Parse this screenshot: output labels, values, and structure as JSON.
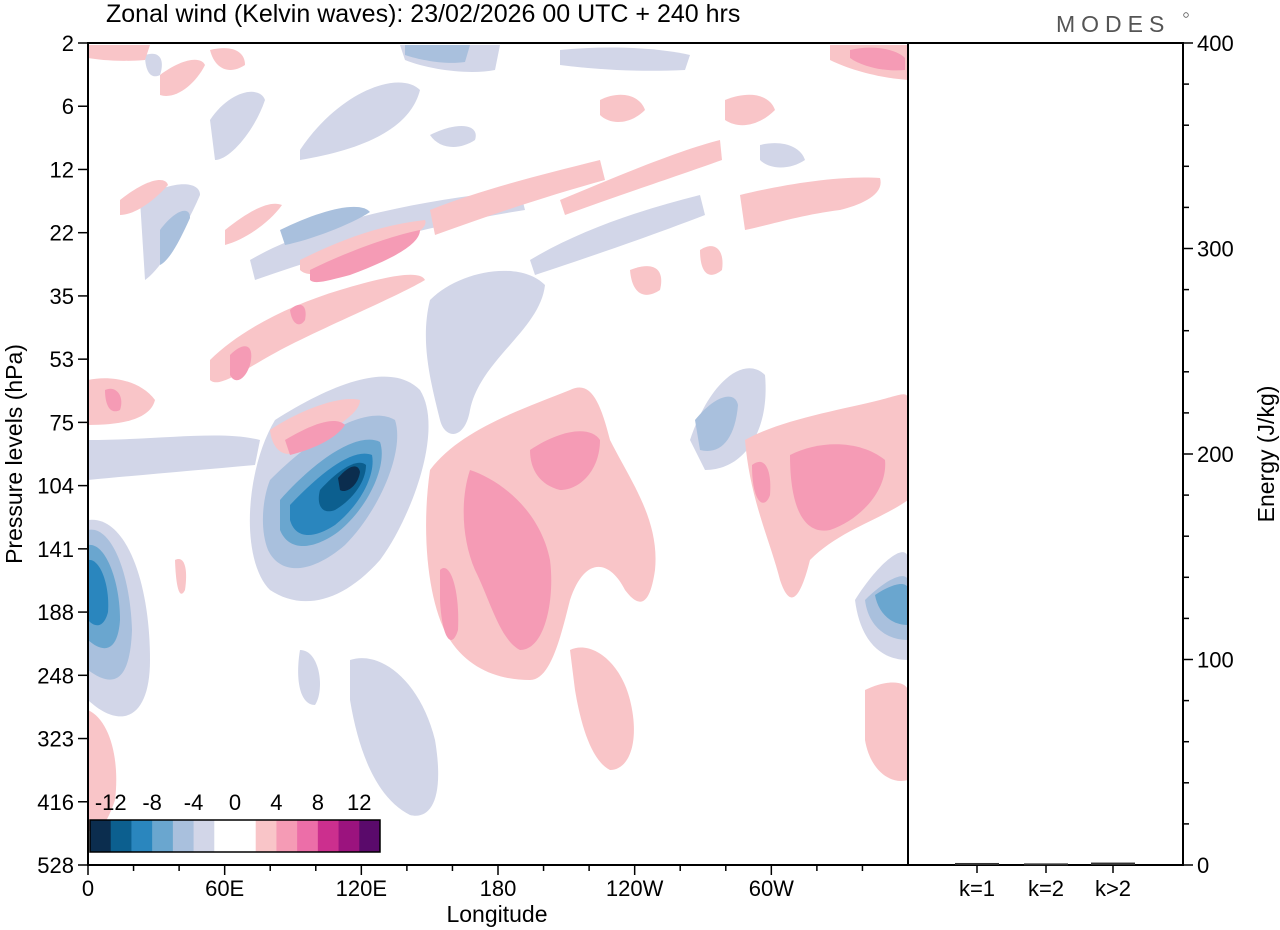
{
  "chart_data": {
    "type": "heatmap",
    "title": "Zonal wind (Kelvin waves):  23/02/2026  00 UTC  + 240 hrs",
    "xlabel": "Longitude",
    "ylabel": "Pressure levels (hPa)",
    "x_ticks": [
      "0",
      "60E",
      "120E",
      "180",
      "120W",
      "60W"
    ],
    "y_ticks": [
      "2",
      "6",
      "12",
      "22",
      "35",
      "53",
      "75",
      "104",
      "141",
      "188",
      "248",
      "323",
      "416",
      "528"
    ],
    "colorbar": {
      "labels": [
        "-12",
        "-8",
        "-4",
        "0",
        "4",
        "8",
        "12"
      ],
      "colors": [
        "#0b2d4e",
        "#0c5f8f",
        "#2a86be",
        "#6aa6cf",
        "#a9c0dd",
        "#d2d6e8",
        "#ffffff",
        "#ffffff",
        "#f9c5c8",
        "#f59bb5",
        "#ec6ea8",
        "#cc2f8e",
        "#9b137e",
        "#5a0a6b"
      ]
    },
    "features": [
      {
        "name": "negative anomaly core",
        "value": -12,
        "lon": "120E",
        "level": 104
      },
      {
        "name": "positive anomaly",
        "value": 8,
        "lon": "180",
        "level": 188
      },
      {
        "name": "positive anomaly",
        "value": 8,
        "lon": "60W",
        "level": 104
      }
    ],
    "energy_panel": {
      "type": "bar",
      "ylabel": "Energy (J/kg)",
      "ylim": [
        0,
        400
      ],
      "y_ticks": [
        "0",
        "100",
        "200",
        "300",
        "400"
      ],
      "categories": [
        "k=1",
        "k=2",
        "k>2"
      ],
      "values": [
        0.5,
        0.3,
        0.7
      ]
    }
  },
  "logo": "MODES"
}
